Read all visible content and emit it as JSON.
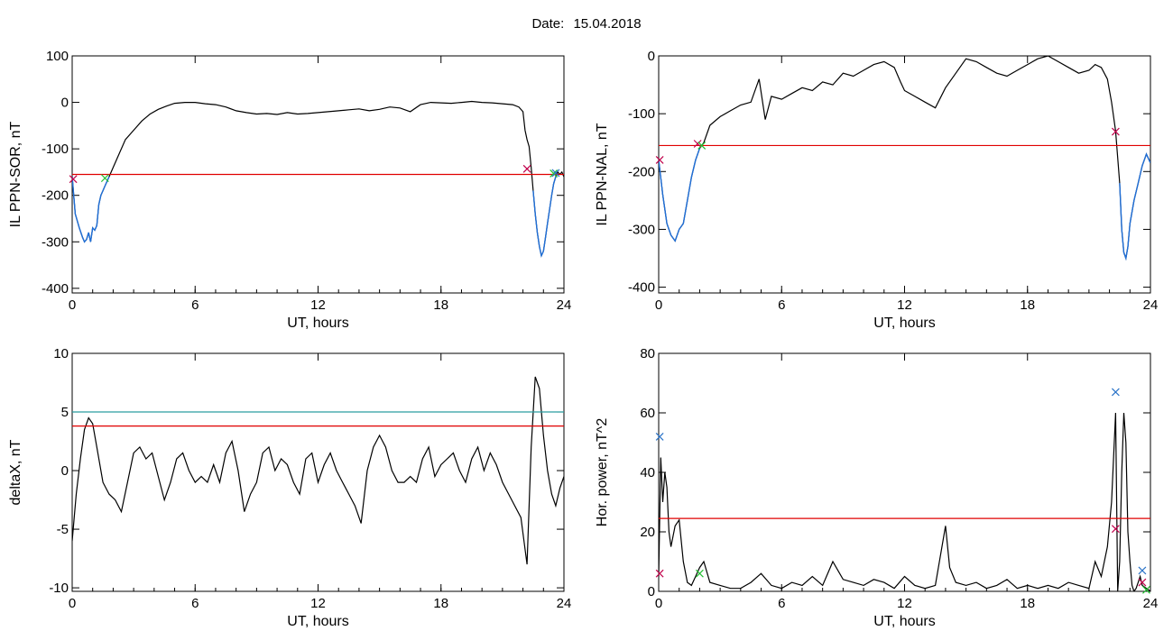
{
  "header": {
    "date_label": "Date:",
    "date_value": "15.04.2018"
  },
  "colors": {
    "curve": "#000000",
    "threshold": "#e00000",
    "threshold_alt": "#2a9da0",
    "highlight": "#1f6fd8",
    "marker_red": "#c0004a",
    "marker_green": "#1fbf2f",
    "marker_blue": "#2a73c8"
  },
  "chart_data": [
    {
      "type": "line",
      "ylabel": "IL PPN-SOR, nT",
      "xlabel": "UT, hours",
      "xlim": [
        0,
        24
      ],
      "ylim": [
        -410,
        100
      ],
      "xticks": [
        0,
        6,
        12,
        18,
        24
      ],
      "yticks": [
        100,
        0,
        -100,
        -200,
        -300,
        -400
      ],
      "thresholds": [
        {
          "value": -155,
          "color": "red"
        }
      ],
      "series": [
        {
          "values_x": [
            0,
            0.15,
            0.35,
            0.5,
            0.6,
            0.7,
            0.8,
            0.9,
            1.0,
            1.1,
            1.2,
            1.3,
            1.4,
            1.5,
            1.6,
            1.7,
            1.8,
            2.0,
            2.3,
            2.6,
            3.0,
            3.4,
            3.8,
            4.2,
            4.6,
            5.0,
            5.5,
            6.0,
            6.5,
            7.0,
            7.5,
            8.0,
            8.5,
            9.0,
            9.5,
            10.0,
            10.5,
            11.0,
            11.5,
            12.0,
            12.5,
            13.0,
            13.5,
            14.0,
            14.5,
            15.0,
            15.5,
            16.0,
            16.5,
            17.0,
            17.5,
            18.0,
            18.5,
            19.0,
            19.5,
            20.0,
            20.5,
            21.0,
            21.5,
            21.8,
            22.0,
            22.1,
            22.2,
            22.3,
            22.4,
            22.5,
            22.6,
            22.7,
            22.8,
            22.9,
            23.0,
            23.1,
            23.2,
            23.3,
            23.4,
            23.5,
            23.6,
            23.7,
            23.8,
            23.9,
            24.0
          ],
          "values_y": [
            -160,
            -240,
            -270,
            -290,
            -300,
            -295,
            -280,
            -300,
            -270,
            -275,
            -265,
            -220,
            -200,
            -190,
            -180,
            -170,
            -160,
            -140,
            -110,
            -80,
            -60,
            -40,
            -25,
            -15,
            -8,
            -2,
            0,
            0,
            -3,
            -5,
            -10,
            -18,
            -22,
            -25,
            -24,
            -26,
            -22,
            -25,
            -24,
            -22,
            -20,
            -18,
            -16,
            -14,
            -18,
            -15,
            -10,
            -12,
            -20,
            -5,
            0,
            -1,
            -2,
            0,
            2,
            0,
            -1,
            -3,
            -5,
            -10,
            -20,
            -60,
            -80,
            -95,
            -140,
            -190,
            -240,
            -280,
            -310,
            -330,
            -320,
            -290,
            -260,
            -230,
            -200,
            -175,
            -160,
            -150,
            -155,
            -150,
            -160
          ]
        }
      ],
      "markers": [
        {
          "x": 0.05,
          "y": -165,
          "color": "red"
        },
        {
          "x": 1.6,
          "y": -163,
          "color": "green"
        },
        {
          "x": 22.2,
          "y": -143,
          "color": "red"
        },
        {
          "x": 23.5,
          "y": -153,
          "color": "green"
        },
        {
          "x": 23.6,
          "y": -152,
          "color": "blue"
        }
      ]
    },
    {
      "type": "line",
      "ylabel": "IL PPN-NAL, nT",
      "xlabel": "UT, hours",
      "xlim": [
        0,
        24
      ],
      "ylim": [
        -410,
        0
      ],
      "xticks": [
        0,
        6,
        12,
        18,
        24
      ],
      "yticks": [
        0,
        -100,
        -200,
        -300,
        -400
      ],
      "thresholds": [
        {
          "value": -155,
          "color": "red"
        }
      ],
      "series": [
        {
          "values_x": [
            0,
            0.2,
            0.4,
            0.6,
            0.8,
            1.0,
            1.2,
            1.4,
            1.6,
            1.8,
            2.0,
            2.2,
            2.5,
            3.0,
            3.5,
            4.0,
            4.5,
            4.9,
            5.2,
            5.5,
            6.0,
            6.5,
            7.0,
            7.5,
            8.0,
            8.5,
            9.0,
            9.5,
            10.0,
            10.5,
            11.0,
            11.5,
            11.8,
            12.0,
            12.5,
            13.0,
            13.5,
            14.0,
            14.5,
            15.0,
            15.5,
            16.0,
            16.5,
            17.0,
            17.5,
            18.0,
            18.5,
            19.0,
            19.5,
            20.0,
            20.5,
            21.0,
            21.3,
            21.6,
            21.9,
            22.1,
            22.3,
            22.5,
            22.6,
            22.7,
            22.8,
            22.9,
            23.0,
            23.2,
            23.4,
            23.6,
            23.8,
            24.0
          ],
          "values_y": [
            -180,
            -240,
            -290,
            -310,
            -320,
            -300,
            -290,
            -250,
            -210,
            -180,
            -160,
            -150,
            -120,
            -105,
            -95,
            -85,
            -80,
            -40,
            -110,
            -70,
            -75,
            -65,
            -55,
            -60,
            -45,
            -50,
            -30,
            -35,
            -25,
            -15,
            -10,
            -20,
            -45,
            -60,
            -70,
            -80,
            -90,
            -55,
            -30,
            -5,
            -10,
            -20,
            -30,
            -35,
            -25,
            -15,
            -5,
            0,
            -10,
            -20,
            -30,
            -25,
            -15,
            -20,
            -40,
            -80,
            -130,
            -220,
            -300,
            -340,
            -350,
            -330,
            -290,
            -250,
            -220,
            -190,
            -170,
            -185
          ]
        }
      ],
      "markers": [
        {
          "x": 0.05,
          "y": -180,
          "color": "red"
        },
        {
          "x": 1.9,
          "y": -152,
          "color": "red"
        },
        {
          "x": 2.1,
          "y": -155,
          "color": "green"
        },
        {
          "x": 22.3,
          "y": -131,
          "color": "red"
        }
      ]
    },
    {
      "type": "line",
      "ylabel": "deltaX, nT",
      "xlabel": "UT, hours",
      "xlim": [
        0,
        24
      ],
      "ylim": [
        -10.3,
        10
      ],
      "xticks": [
        0,
        6,
        12,
        18,
        24
      ],
      "yticks": [
        10,
        5,
        0,
        -5,
        -10
      ],
      "thresholds": [
        {
          "value": 5,
          "color": "teal"
        },
        {
          "value": 3.8,
          "color": "red"
        }
      ],
      "series": [
        {
          "values_x": [
            0,
            0.2,
            0.4,
            0.6,
            0.8,
            1.0,
            1.2,
            1.5,
            1.8,
            2.1,
            2.4,
            2.7,
            3.0,
            3.3,
            3.6,
            3.9,
            4.2,
            4.5,
            4.8,
            5.1,
            5.4,
            5.7,
            6.0,
            6.3,
            6.6,
            6.9,
            7.2,
            7.5,
            7.8,
            8.1,
            8.4,
            8.7,
            9.0,
            9.3,
            9.6,
            9.9,
            10.2,
            10.5,
            10.8,
            11.1,
            11.4,
            11.7,
            12.0,
            12.3,
            12.6,
            12.9,
            13.2,
            13.5,
            13.8,
            14.1,
            14.4,
            14.7,
            15.0,
            15.3,
            15.6,
            15.9,
            16.2,
            16.5,
            16.8,
            17.1,
            17.4,
            17.7,
            18.0,
            18.3,
            18.6,
            18.9,
            19.2,
            19.5,
            19.8,
            20.1,
            20.4,
            20.7,
            21.0,
            21.3,
            21.6,
            21.9,
            22.2,
            22.4,
            22.6,
            22.8,
            23.0,
            23.2,
            23.4,
            23.6,
            23.8,
            24.0
          ],
          "values_y": [
            -6,
            -2,
            1,
            3.5,
            4.5,
            4.0,
            2,
            -1,
            -2,
            -2.5,
            -3.5,
            -1,
            1.5,
            2,
            1,
            1.5,
            -0.5,
            -2.5,
            -1,
            1,
            1.5,
            0,
            -1,
            -0.5,
            -1,
            0.5,
            -1,
            1.5,
            2.5,
            0,
            -3.5,
            -2,
            -1,
            1.5,
            2,
            0,
            1,
            0.5,
            -1,
            -2,
            1,
            1.5,
            -1,
            0.5,
            1.5,
            0,
            -1,
            -2,
            -3,
            -4.5,
            0,
            2,
            3,
            2,
            0,
            -1,
            -1,
            -0.5,
            -1,
            1,
            2,
            -0.5,
            0.5,
            1,
            1.5,
            0,
            -1,
            1,
            2,
            0,
            1.5,
            0.5,
            -1,
            -2,
            -3,
            -4,
            -8,
            2,
            8,
            7,
            3,
            0,
            -2,
            -3,
            -1.5,
            -0.5
          ]
        }
      ],
      "markers": []
    },
    {
      "type": "line",
      "ylabel": "Hor. power, nT^2",
      "xlabel": "UT, hours",
      "xlim": [
        0,
        24
      ],
      "ylim": [
        0,
        80
      ],
      "xticks": [
        0,
        6,
        12,
        18,
        24
      ],
      "yticks": [
        80,
        60,
        40,
        20,
        0
      ],
      "thresholds": [
        {
          "value": 24.5,
          "color": "red"
        }
      ],
      "series": [
        {
          "values_x": [
            0,
            0.1,
            0.2,
            0.3,
            0.4,
            0.5,
            0.6,
            0.8,
            1.0,
            1.2,
            1.4,
            1.6,
            1.8,
            2.0,
            2.2,
            2.5,
            3.0,
            3.5,
            4.0,
            4.5,
            5.0,
            5.5,
            6.0,
            6.5,
            7.0,
            7.5,
            8.0,
            8.5,
            9.0,
            9.5,
            10.0,
            10.5,
            11.0,
            11.5,
            12.0,
            12.5,
            13.0,
            13.5,
            14.0,
            14.2,
            14.5,
            15.0,
            15.5,
            16.0,
            16.5,
            17.0,
            17.5,
            18.0,
            18.5,
            19.0,
            19.5,
            20.0,
            20.5,
            21.0,
            21.3,
            21.6,
            21.9,
            22.1,
            22.3,
            22.4,
            22.5,
            22.6,
            22.7,
            22.8,
            22.9,
            23.0,
            23.1,
            23.2,
            23.3,
            23.4,
            23.5,
            23.6,
            23.8,
            24.0
          ],
          "values_y": [
            5,
            45,
            30,
            40,
            35,
            20,
            15,
            22,
            24,
            10,
            3,
            2,
            5,
            8,
            10,
            3,
            2,
            1,
            1,
            3,
            6,
            2,
            1,
            3,
            2,
            5,
            2,
            10,
            4,
            3,
            2,
            4,
            3,
            1,
            5,
            2,
            1,
            2,
            22,
            8,
            3,
            2,
            3,
            1,
            2,
            4,
            1,
            2,
            1,
            2,
            1,
            3,
            2,
            1,
            10,
            5,
            15,
            30,
            60,
            0,
            10,
            40,
            60,
            50,
            20,
            10,
            2,
            0,
            1,
            3,
            5,
            2,
            1,
            0
          ]
        }
      ],
      "markers": [
        {
          "x": 0.05,
          "y": 52,
          "color": "blue"
        },
        {
          "x": 0.05,
          "y": 6,
          "color": "red"
        },
        {
          "x": 2.0,
          "y": 6,
          "color": "green"
        },
        {
          "x": 22.3,
          "y": 67,
          "color": "blue"
        },
        {
          "x": 22.3,
          "y": 21,
          "color": "red"
        },
        {
          "x": 23.6,
          "y": 7,
          "color": "blue"
        },
        {
          "x": 23.6,
          "y": 3,
          "color": "red"
        },
        {
          "x": 23.8,
          "y": 0.5,
          "color": "green"
        }
      ]
    }
  ]
}
